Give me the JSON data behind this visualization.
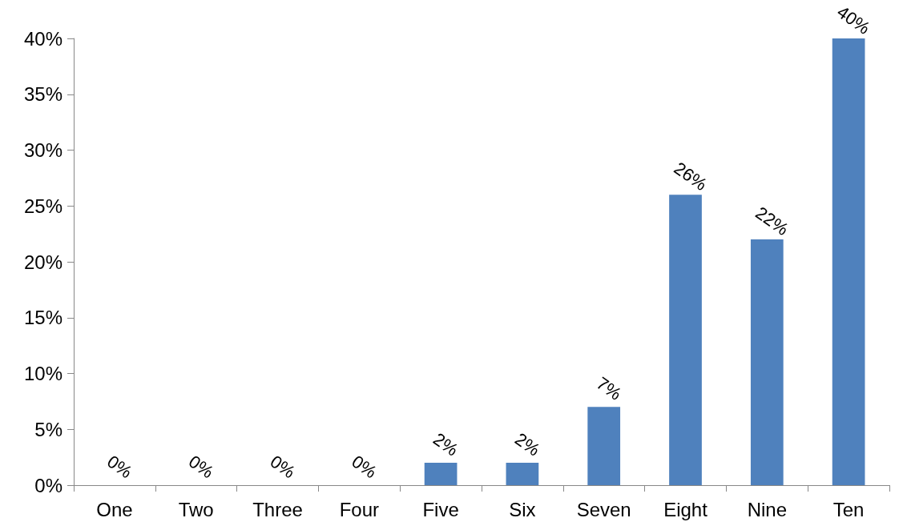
{
  "chart_data": {
    "type": "bar",
    "categories": [
      "One",
      "Two",
      "Three",
      "Four",
      "Five",
      "Six",
      "Seven",
      "Eight",
      "Nine",
      "Ten"
    ],
    "values": [
      0,
      0,
      0,
      0,
      2,
      2,
      7,
      26,
      22,
      40
    ],
    "value_labels": [
      "0%",
      "0%",
      "0%",
      "0%",
      "2%",
      "2%",
      "7%",
      "26%",
      "22%",
      "40%"
    ],
    "color": "#4f81bd",
    "ylim": [
      0,
      40
    ],
    "yticks": [
      {
        "value": 0,
        "label": "0%"
      },
      {
        "value": 5,
        "label": "5%"
      },
      {
        "value": 10,
        "label": "10%"
      },
      {
        "value": 15,
        "label": "15%"
      },
      {
        "value": 20,
        "label": "20%"
      },
      {
        "value": 25,
        "label": "25%"
      },
      {
        "value": 30,
        "label": "30%"
      },
      {
        "value": 35,
        "label": "35%"
      },
      {
        "value": 40,
        "label": "40%"
      }
    ],
    "grid": false
  }
}
